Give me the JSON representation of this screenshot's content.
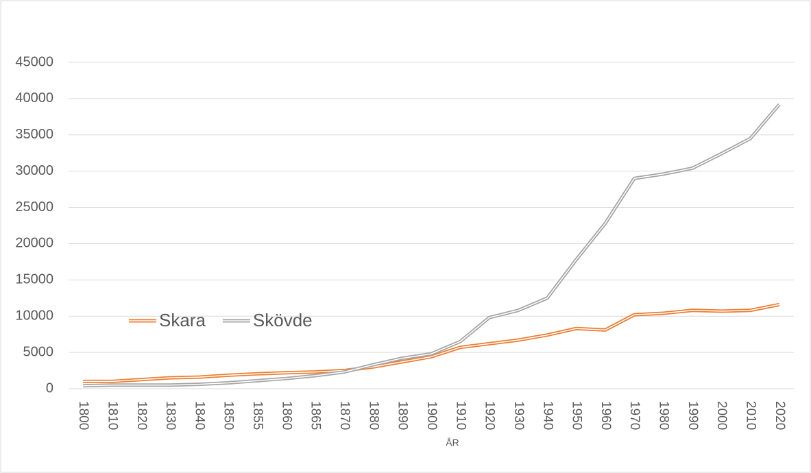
{
  "chart_data": {
    "type": "line",
    "x_label": "ÅR",
    "categories": [
      "1800",
      "1810",
      "1820",
      "1830",
      "1840",
      "1850",
      "1855",
      "1860",
      "1865",
      "1870",
      "1880",
      "1890",
      "1900",
      "1910",
      "1920",
      "1930",
      "1940",
      "1950",
      "1960",
      "1970",
      "1980",
      "1990",
      "2000",
      "2010",
      "2020"
    ],
    "series": [
      {
        "name": "Skara",
        "color": "#ed7d31",
        "values": [
          1000,
          1000,
          1250,
          1500,
          1600,
          1850,
          2050,
          2200,
          2300,
          2500,
          3000,
          3700,
          4400,
          5700,
          6200,
          6700,
          7400,
          8300,
          8100,
          10200,
          10400,
          10800,
          10700,
          10800,
          11600
        ]
      },
      {
        "name": "Skövde",
        "color": "#a5a5a5",
        "values": [
          400,
          500,
          500,
          500,
          600,
          800,
          1100,
          1400,
          1800,
          2300,
          3300,
          4200,
          4800,
          6500,
          9800,
          10800,
          12500,
          17800,
          22800,
          29000,
          29600,
          30400,
          32400,
          34500,
          39200
        ]
      }
    ],
    "ylim": [
      0,
      45000
    ],
    "yticks": [
      0,
      5000,
      10000,
      15000,
      20000,
      25000,
      30000,
      35000,
      40000,
      45000
    ],
    "grid": true,
    "legend": "left"
  }
}
